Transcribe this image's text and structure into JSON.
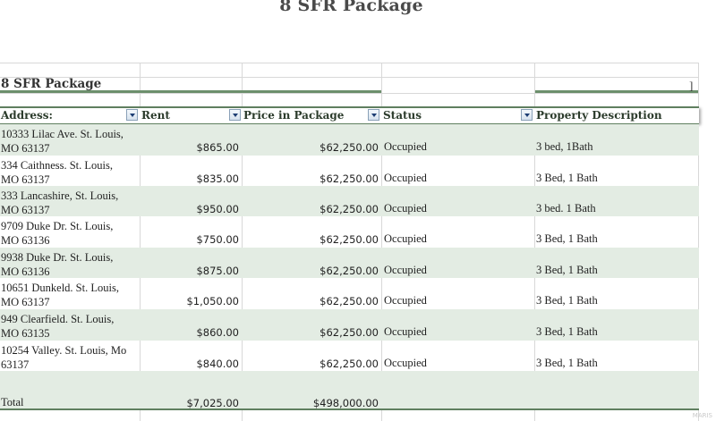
{
  "document": {
    "title": "8 SFR Package"
  },
  "sheet": {
    "title": "8 SFR Package",
    "bracket": "]",
    "headers": {
      "address": "Address:",
      "rent": "Rent",
      "price": "Price in Package",
      "status": "Status",
      "description": "Property Description"
    },
    "rows": [
      {
        "address_line1": "10333 Lilac Ave. St. Louis,",
        "address_line2": "MO 63137",
        "rent": "$865.00",
        "price": "$62,250.00",
        "status": "Occupied",
        "description": "3 bed, 1Bath"
      },
      {
        "address_line1": "334 Caithness. St. Louis,",
        "address_line2": "MO 63137",
        "rent": "$835.00",
        "price": "$62,250.00",
        "status": "Occupied",
        "description": "3 Bed, 1 Bath"
      },
      {
        "address_line1": "333 Lancashire, St. Louis,",
        "address_line2": "MO 63137",
        "rent": "$950.00",
        "price": "$62,250.00",
        "status": "Occupied",
        "description": "3 bed. 1 Bath"
      },
      {
        "address_line1": "9709 Duke Dr. St. Louis,",
        "address_line2": "MO 63136",
        "rent": "$750.00",
        "price": "$62,250.00",
        "status": "Occupied",
        "description": "3 Bed, 1 Bath"
      },
      {
        "address_line1": "9938 Duke Dr. St. Louis,",
        "address_line2": "MO 63136",
        "rent": "$875.00",
        "price": "$62,250.00",
        "status": "Occupied",
        "description": "3 Bed, 1 Bath"
      },
      {
        "address_line1": "10651 Dunkeld. St. Louis,",
        "address_line2": "MO 63137",
        "rent": "$1,050.00",
        "price": "$62,250.00",
        "status": "Occupied",
        "description": "3 Bed, 1 Bath"
      },
      {
        "address_line1": "949 Clearfield. St. Louis,",
        "address_line2": "MO 63135",
        "rent": "$860.00",
        "price": "$62,250.00",
        "status": "Occupied",
        "description": "3 Bed, 1 Bath"
      },
      {
        "address_line1": "10254 Valley. St. Louis, Mo",
        "address_line2": "63137",
        "rent": "$840.00",
        "price": "$62,250.00",
        "status": "Occupied",
        "description": "3 Bed, 1 Bath"
      }
    ],
    "total": {
      "label": "Total",
      "rent": "$7,025.00",
      "price": "$498,000.00"
    }
  },
  "watermark": "MARIS",
  "colors": {
    "band": "#e3ece3",
    "rule": "#5f7f5f",
    "filter_arrow": "#1c3d73"
  }
}
